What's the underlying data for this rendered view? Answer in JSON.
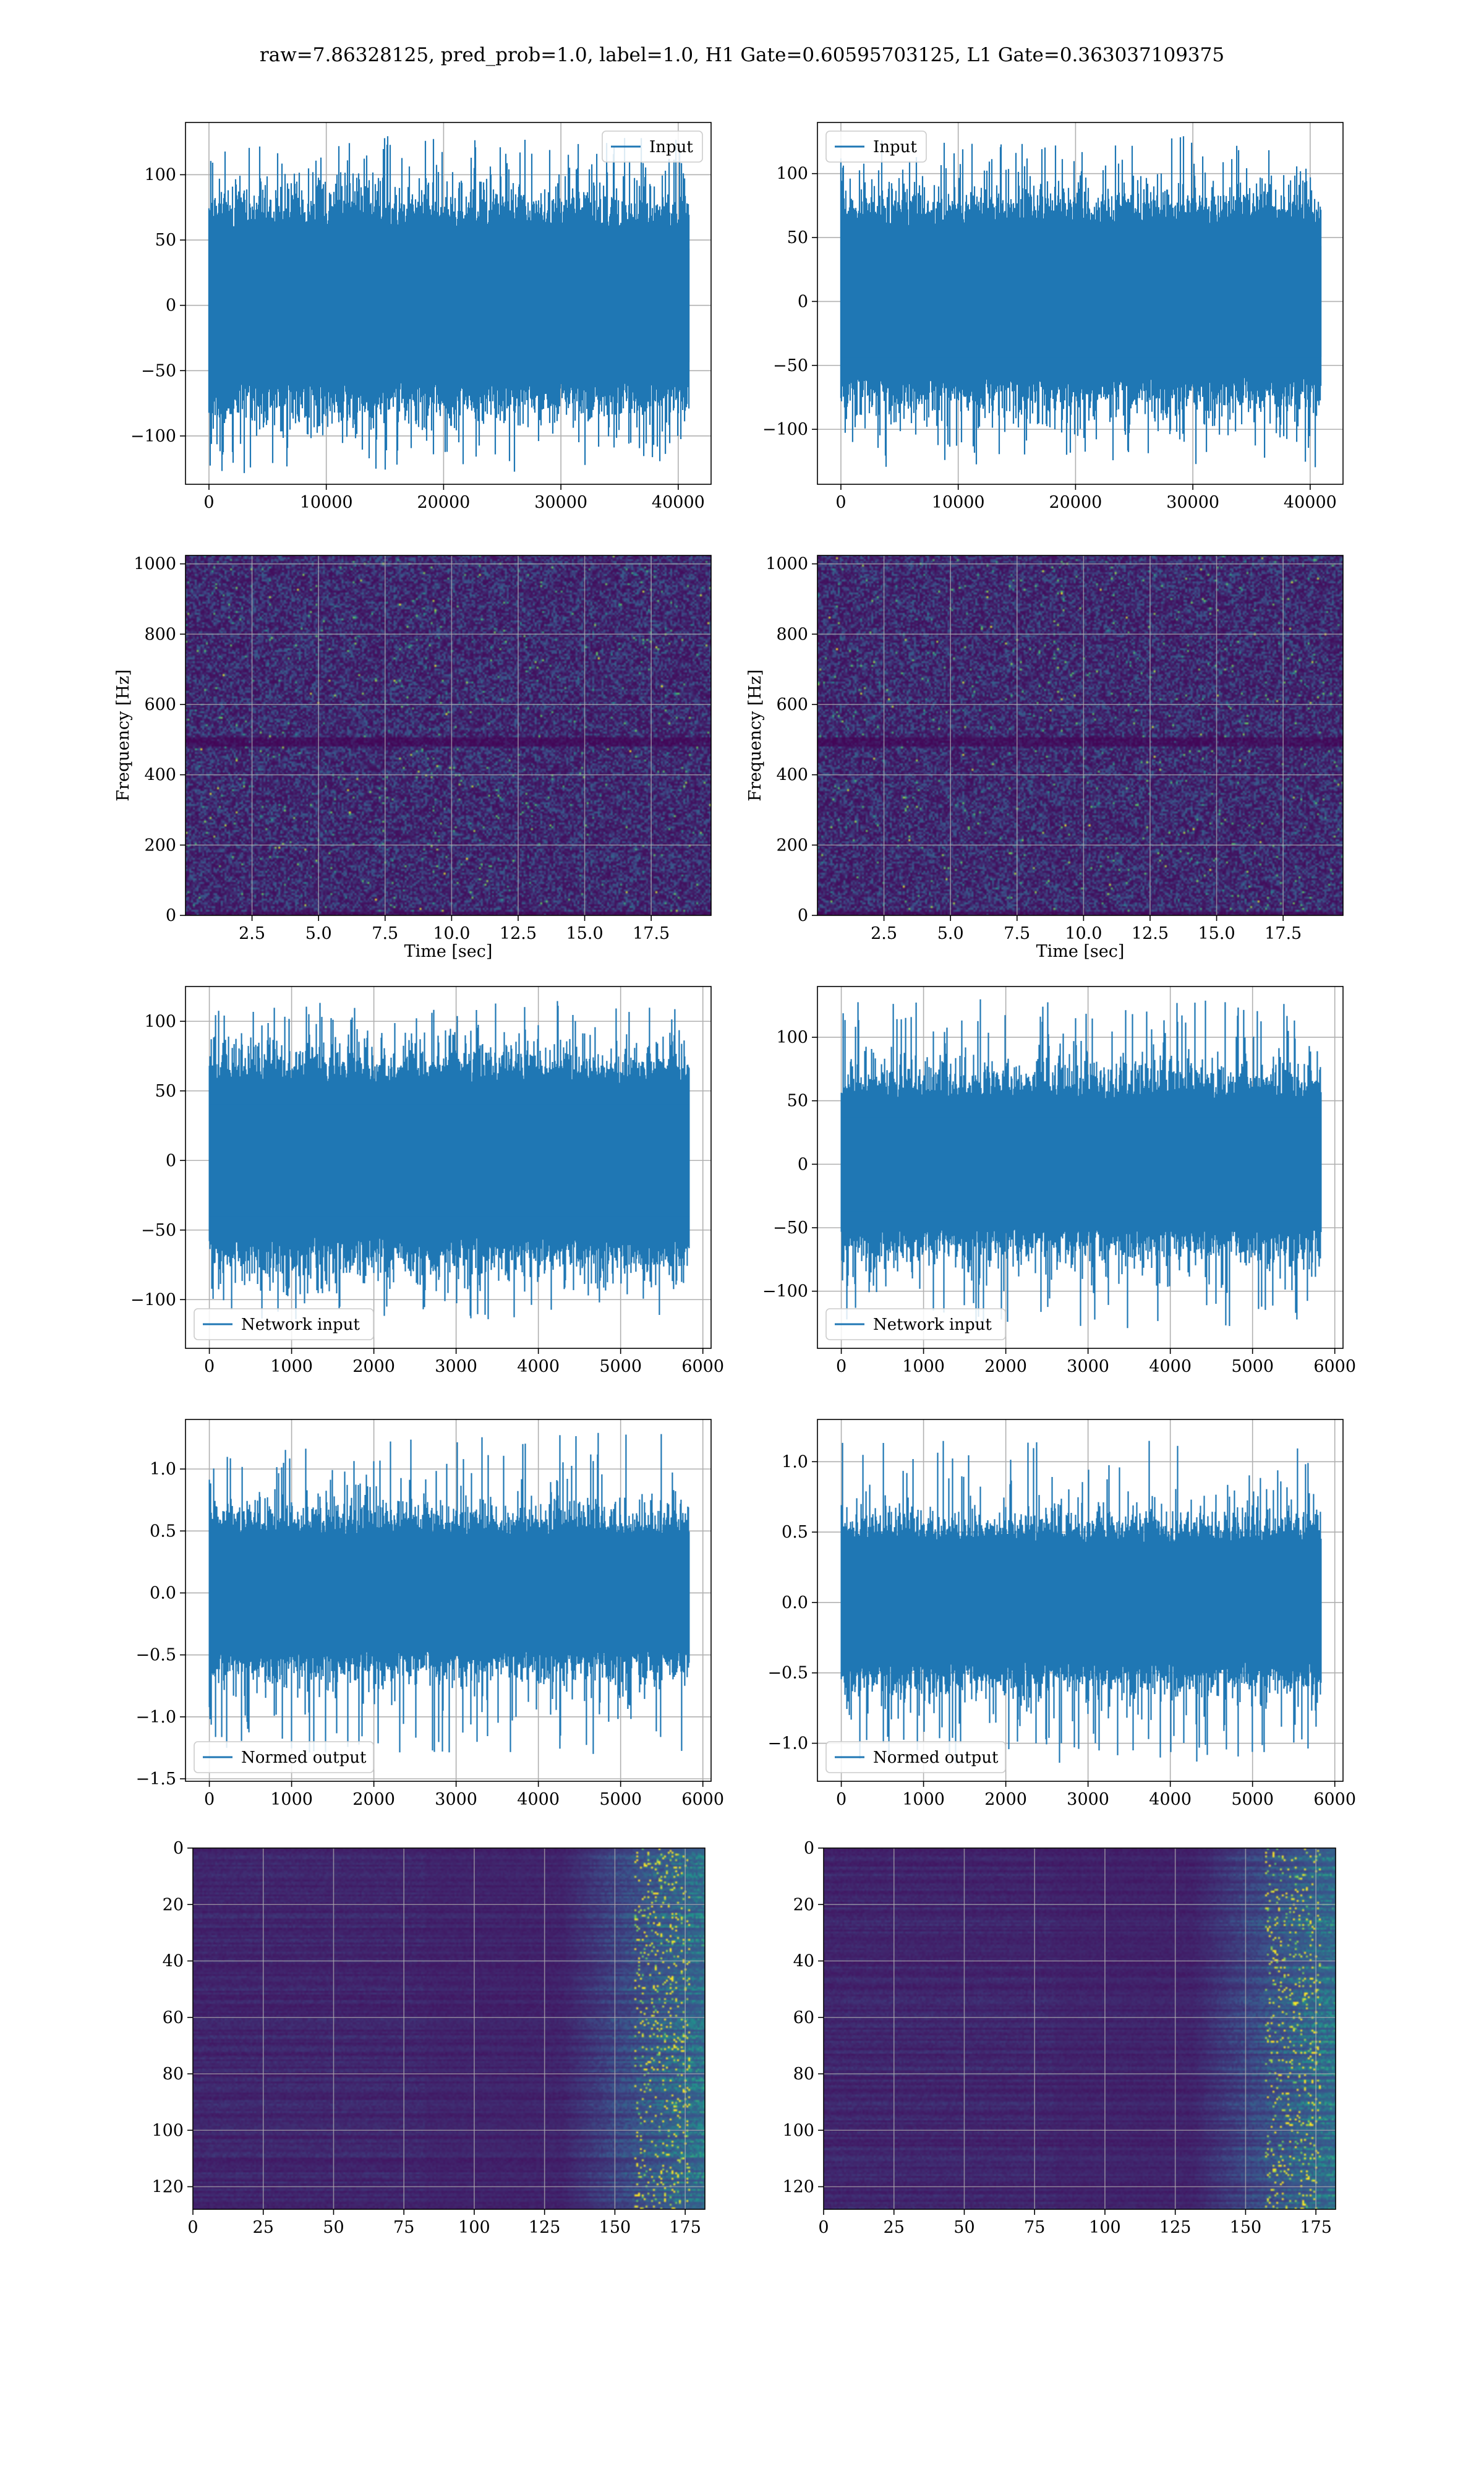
{
  "figure": {
    "title": "raw=7.86328125, pred_prob=1.0, label=1.0, H1 Gate=0.60595703125, L1 Gate=0.363037109375",
    "colors": {
      "line": "#1f77b4",
      "grid": "#b0b0b0",
      "heat_low": "#440154",
      "heat_mid": "#21918c",
      "heat_high": "#fde725"
    }
  },
  "chart_data": [
    {
      "id": "input-h1",
      "type": "line",
      "row": 0,
      "col": 0,
      "series": [
        {
          "name": "Input",
          "amplitude": 70,
          "spike_max": 130
        }
      ],
      "xlim": [
        -2000,
        42800
      ],
      "ylim": [
        -137,
        140
      ],
      "xticks": [
        0,
        10000,
        20000,
        30000,
        40000
      ],
      "xtick_labels": [
        "0",
        "10000",
        "20000",
        "30000",
        "40000"
      ],
      "yticks": [
        -100,
        -50,
        0,
        50,
        100
      ],
      "ytick_labels": [
        "−100",
        "−50",
        "0",
        "50",
        "100"
      ],
      "n_samples": 40960,
      "legend": "upper right",
      "grid": true
    },
    {
      "id": "input-l1",
      "type": "line",
      "row": 0,
      "col": 1,
      "series": [
        {
          "name": "Input",
          "amplitude": 70,
          "spike_max": 130
        }
      ],
      "xlim": [
        -2000,
        42800
      ],
      "ylim": [
        -143,
        140
      ],
      "xticks": [
        0,
        10000,
        20000,
        30000,
        40000
      ],
      "xtick_labels": [
        "0",
        "10000",
        "20000",
        "30000",
        "40000"
      ],
      "yticks": [
        -100,
        -50,
        0,
        50,
        100
      ],
      "ytick_labels": [
        "−100",
        "−50",
        "0",
        "50",
        "100"
      ],
      "n_samples": 40960,
      "legend": "upper left",
      "grid": true
    },
    {
      "id": "spectrogram-h1",
      "type": "heatmap",
      "row": 1,
      "col": 0,
      "xlabel": "Time [sec]",
      "ylabel": "Frequency [Hz]",
      "xlim": [
        0,
        19.75
      ],
      "ylim": [
        0,
        1024
      ],
      "xticks": [
        2.5,
        5.0,
        7.5,
        10.0,
        12.5,
        15.0,
        17.5
      ],
      "xtick_labels": [
        "2.5",
        "5.0",
        "7.5",
        "10.0",
        "12.5",
        "15.0",
        "17.5"
      ],
      "yticks": [
        0,
        200,
        400,
        600,
        800,
        1000
      ],
      "ytick_labels": [
        "0",
        "200",
        "400",
        "600",
        "800",
        "1000"
      ],
      "grid": true
    },
    {
      "id": "spectrogram-l1",
      "type": "heatmap",
      "row": 1,
      "col": 1,
      "xlabel": "Time [sec]",
      "ylabel": "Frequency [Hz]",
      "xlim": [
        0,
        19.75
      ],
      "ylim": [
        0,
        1024
      ],
      "xticks": [
        2.5,
        5.0,
        7.5,
        10.0,
        12.5,
        15.0,
        17.5
      ],
      "xtick_labels": [
        "2.5",
        "5.0",
        "7.5",
        "10.0",
        "12.5",
        "15.0",
        "17.5"
      ],
      "yticks": [
        0,
        200,
        400,
        600,
        800,
        1000
      ],
      "ytick_labels": [
        "0",
        "200",
        "400",
        "600",
        "800",
        "1000"
      ],
      "grid": true
    },
    {
      "id": "network-input-h1",
      "type": "line",
      "row": 2,
      "col": 0,
      "series": [
        {
          "name": "Network input",
          "amplitude": 65,
          "spike_max": 115
        }
      ],
      "xlim": [
        -290,
        6100
      ],
      "ylim": [
        -135,
        125
      ],
      "xticks": [
        0,
        1000,
        2000,
        3000,
        4000,
        5000,
        6000
      ],
      "xtick_labels": [
        "0",
        "1000",
        "2000",
        "3000",
        "4000",
        "5000",
        "6000"
      ],
      "yticks": [
        -100,
        -50,
        0,
        50,
        100
      ],
      "ytick_labels": [
        "−100",
        "−50",
        "0",
        "50",
        "100"
      ],
      "n_samples": 5840,
      "legend": "lower left",
      "grid": true
    },
    {
      "id": "network-input-l1",
      "type": "line",
      "row": 2,
      "col": 1,
      "series": [
        {
          "name": "Network input",
          "amplitude": 60,
          "spike_max": 130
        }
      ],
      "xlim": [
        -290,
        6100
      ],
      "ylim": [
        -145,
        140
      ],
      "xticks": [
        0,
        1000,
        2000,
        3000,
        4000,
        5000,
        6000
      ],
      "xtick_labels": [
        "0",
        "1000",
        "2000",
        "3000",
        "4000",
        "5000",
        "6000"
      ],
      "yticks": [
        -100,
        -50,
        0,
        50,
        100
      ],
      "ytick_labels": [
        "−100",
        "−50",
        "0",
        "50",
        "100"
      ],
      "n_samples": 5840,
      "legend": "lower left",
      "grid": true
    },
    {
      "id": "normed-output-h1",
      "type": "line",
      "row": 3,
      "col": 0,
      "series": [
        {
          "name": "Normed output",
          "amplitude": 0.55,
          "spike_max": 1.3
        }
      ],
      "xlim": [
        -290,
        6100
      ],
      "ylim": [
        -1.52,
        1.4
      ],
      "xticks": [
        0,
        1000,
        2000,
        3000,
        4000,
        5000,
        6000
      ],
      "xtick_labels": [
        "0",
        "1000",
        "2000",
        "3000",
        "4000",
        "5000",
        "6000"
      ],
      "yticks": [
        -1.5,
        -1.0,
        -0.5,
        0.0,
        0.5,
        1.0
      ],
      "ytick_labels": [
        "−1.5",
        "−1.0",
        "−0.5",
        "0.0",
        "0.5",
        "1.0"
      ],
      "n_samples": 5840,
      "legend": "lower left",
      "grid": true
    },
    {
      "id": "normed-output-l1",
      "type": "line",
      "row": 3,
      "col": 1,
      "series": [
        {
          "name": "Normed output",
          "amplitude": 0.5,
          "spike_max": 1.15
        }
      ],
      "xlim": [
        -290,
        6100
      ],
      "ylim": [
        -1.27,
        1.3
      ],
      "xticks": [
        0,
        1000,
        2000,
        3000,
        4000,
        5000,
        6000
      ],
      "xtick_labels": [
        "0",
        "1000",
        "2000",
        "3000",
        "4000",
        "5000",
        "6000"
      ],
      "yticks": [
        -1.0,
        -0.5,
        0.0,
        0.5,
        1.0
      ],
      "ytick_labels": [
        "−1.0",
        "−0.5",
        "0.0",
        "0.5",
        "1.0"
      ],
      "n_samples": 5840,
      "legend": "lower left",
      "grid": true
    },
    {
      "id": "activation-map-h1",
      "type": "heatmap",
      "row": 4,
      "col": 0,
      "xlim": [
        0,
        182
      ],
      "ylim": [
        128,
        0
      ],
      "xticks": [
        0,
        25,
        50,
        75,
        100,
        125,
        150,
        175
      ],
      "xtick_labels": [
        "0",
        "25",
        "50",
        "75",
        "100",
        "125",
        "150",
        "175"
      ],
      "yticks": [
        0,
        20,
        40,
        60,
        80,
        100,
        120
      ],
      "ytick_labels": [
        "0",
        "20",
        "40",
        "60",
        "80",
        "100",
        "120"
      ],
      "grid": true
    },
    {
      "id": "activation-map-l1",
      "type": "heatmap",
      "row": 4,
      "col": 1,
      "xlim": [
        0,
        182
      ],
      "ylim": [
        128,
        0
      ],
      "xticks": [
        0,
        25,
        50,
        75,
        100,
        125,
        150,
        175
      ],
      "xtick_labels": [
        "0",
        "25",
        "50",
        "75",
        "100",
        "125",
        "150",
        "175"
      ],
      "yticks": [
        0,
        20,
        40,
        60,
        80,
        100,
        120
      ],
      "ytick_labels": [
        "0",
        "20",
        "40",
        "60",
        "80",
        "100",
        "120"
      ],
      "grid": true
    }
  ]
}
